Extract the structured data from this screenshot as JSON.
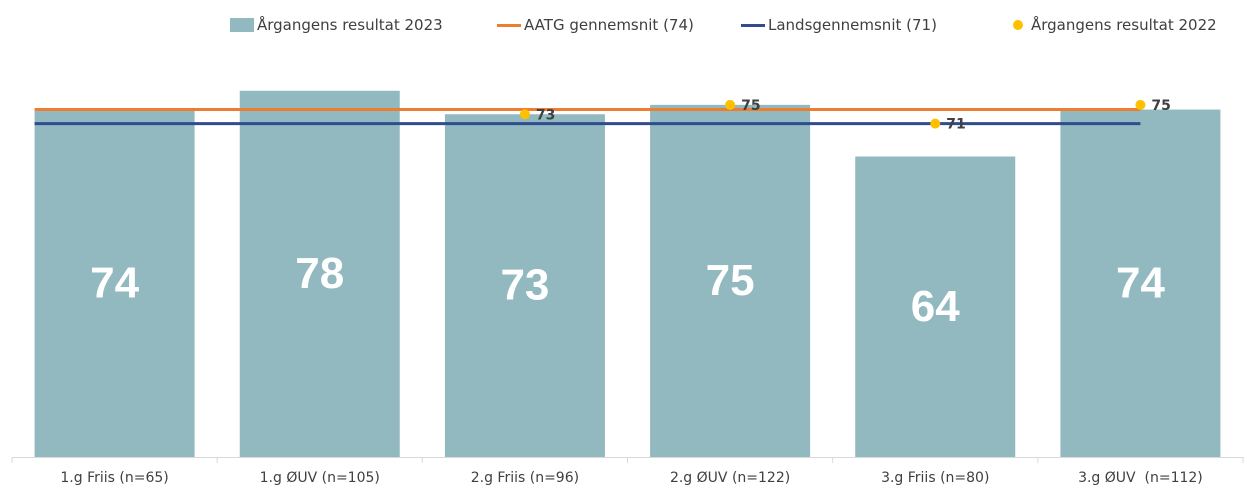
{
  "chart_data": {
    "type": "bar",
    "categories": [
      "1.g Friis (n=65)",
      "1.g ØUV (n=105)",
      "2.g Friis (n=96)",
      "2.g ØUV (n=122)",
      "3.g Friis (n=80)",
      "3.g ØUV  (n=112)"
    ],
    "series": [
      {
        "name": "Årgangens resultat 2023",
        "kind": "bar",
        "color": "#91B9BF",
        "values": [
          74,
          78,
          73,
          75,
          64,
          74
        ],
        "labels": [
          "74",
          "78",
          "73",
          "75",
          "64",
          "74"
        ]
      },
      {
        "name": "AATG gennemsnit (74)",
        "kind": "line",
        "color": "#ED7D31",
        "values": [
          74,
          74,
          74,
          74,
          74,
          74
        ]
      },
      {
        "name": "Landsgennemsnit (71)",
        "kind": "line",
        "color": "#2F4C8F",
        "values": [
          71,
          71,
          71,
          71,
          71,
          71
        ]
      },
      {
        "name": "Årgangens resultat 2022",
        "kind": "scatter",
        "color": "#FFC000",
        "values": [
          null,
          null,
          73,
          75,
          71,
          75
        ],
        "labels": [
          "",
          "",
          "73",
          "75",
          "71",
          "75"
        ]
      }
    ],
    "ylim": [
      0,
      82
    ],
    "grid": false,
    "legend_position": "top"
  }
}
